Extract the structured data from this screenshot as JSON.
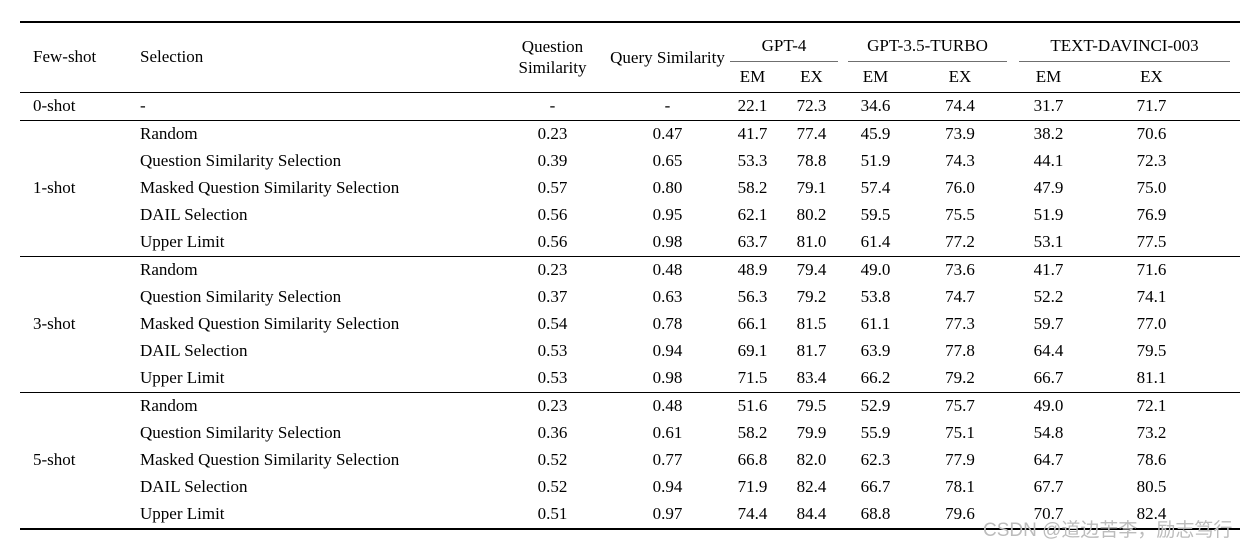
{
  "page": {
    "watermark": "CSDN @道边苦李，励志笃行"
  },
  "table": {
    "column_headers": {
      "few_shot": "Few-shot",
      "selection": "Selection",
      "question_similarity": "Question Similarity",
      "query_similarity": "Query Similarity"
    },
    "model_groups": [
      "GPT-4",
      "GPT-3.5-TURBO",
      "TEXT-DAVINCI-003"
    ],
    "metric_columns": [
      "EM",
      "EX",
      "EM",
      "EX",
      "EM",
      "EX"
    ],
    "sections": [
      {
        "few_shot": "0-shot",
        "rows": [
          {
            "selection": "-",
            "question_similarity": "-",
            "query_similarity": "-",
            "gpt4": {
              "em": "22.1",
              "ex": "72.3"
            },
            "gpt35_turbo": {
              "em": "34.6",
              "ex": "74.4"
            },
            "text_davinci_003": {
              "em": "31.7",
              "ex": "71.7"
            }
          }
        ]
      },
      {
        "few_shot": "1-shot",
        "rows": [
          {
            "selection": "Random",
            "question_similarity": "0.23",
            "query_similarity": "0.47",
            "gpt4": {
              "em": "41.7",
              "ex": "77.4"
            },
            "gpt35_turbo": {
              "em": "45.9",
              "ex": "73.9"
            },
            "text_davinci_003": {
              "em": "38.2",
              "ex": "70.6"
            }
          },
          {
            "selection": "Question Similarity Selection",
            "question_similarity": "0.39",
            "query_similarity": "0.65",
            "gpt4": {
              "em": "53.3",
              "ex": "78.8"
            },
            "gpt35_turbo": {
              "em": "51.9",
              "ex": "74.3"
            },
            "text_davinci_003": {
              "em": "44.1",
              "ex": "72.3"
            }
          },
          {
            "selection": "Masked Question Similarity Selection",
            "question_similarity": "0.57",
            "query_similarity": "0.80",
            "gpt4": {
              "em": "58.2",
              "ex": "79.1"
            },
            "gpt35_turbo": {
              "em": "57.4",
              "ex": "76.0"
            },
            "text_davinci_003": {
              "em": "47.9",
              "ex": "75.0"
            }
          },
          {
            "selection": "DAIL Selection",
            "question_similarity": "0.56",
            "query_similarity": "0.95",
            "gpt4": {
              "em": "62.1",
              "ex": "80.2"
            },
            "gpt35_turbo": {
              "em": "59.5",
              "ex": "75.5"
            },
            "text_davinci_003": {
              "em": "51.9",
              "ex": "76.9"
            }
          },
          {
            "selection": "Upper Limit",
            "question_similarity": "0.56",
            "query_similarity": "0.98",
            "gpt4": {
              "em": "63.7",
              "ex": "81.0"
            },
            "gpt35_turbo": {
              "em": "61.4",
              "ex": "77.2"
            },
            "text_davinci_003": {
              "em": "53.1",
              "ex": "77.5"
            }
          }
        ]
      },
      {
        "few_shot": "3-shot",
        "rows": [
          {
            "selection": "Random",
            "question_similarity": "0.23",
            "query_similarity": "0.48",
            "gpt4": {
              "em": "48.9",
              "ex": "79.4"
            },
            "gpt35_turbo": {
              "em": "49.0",
              "ex": "73.6"
            },
            "text_davinci_003": {
              "em": "41.7",
              "ex": "71.6"
            }
          },
          {
            "selection": "Question Similarity Selection",
            "question_similarity": "0.37",
            "query_similarity": "0.63",
            "gpt4": {
              "em": "56.3",
              "ex": "79.2"
            },
            "gpt35_turbo": {
              "em": "53.8",
              "ex": "74.7"
            },
            "text_davinci_003": {
              "em": "52.2",
              "ex": "74.1"
            }
          },
          {
            "selection": "Masked Question Similarity Selection",
            "question_similarity": "0.54",
            "query_similarity": "0.78",
            "gpt4": {
              "em": "66.1",
              "ex": "81.5"
            },
            "gpt35_turbo": {
              "em": "61.1",
              "ex": "77.3"
            },
            "text_davinci_003": {
              "em": "59.7",
              "ex": "77.0"
            }
          },
          {
            "selection": "DAIL Selection",
            "question_similarity": "0.53",
            "query_similarity": "0.94",
            "gpt4": {
              "em": "69.1",
              "ex": "81.7"
            },
            "gpt35_turbo": {
              "em": "63.9",
              "ex": "77.8"
            },
            "text_davinci_003": {
              "em": "64.4",
              "ex": "79.5"
            }
          },
          {
            "selection": "Upper Limit",
            "question_similarity": "0.53",
            "query_similarity": "0.98",
            "gpt4": {
              "em": "71.5",
              "ex": "83.4"
            },
            "gpt35_turbo": {
              "em": "66.2",
              "ex": "79.2"
            },
            "text_davinci_003": {
              "em": "66.7",
              "ex": "81.1"
            }
          }
        ]
      },
      {
        "few_shot": "5-shot",
        "rows": [
          {
            "selection": "Random",
            "question_similarity": "0.23",
            "query_similarity": "0.48",
            "gpt4": {
              "em": "51.6",
              "ex": "79.5"
            },
            "gpt35_turbo": {
              "em": "52.9",
              "ex": "75.7"
            },
            "text_davinci_003": {
              "em": "49.0",
              "ex": "72.1"
            }
          },
          {
            "selection": "Question Similarity Selection",
            "question_similarity": "0.36",
            "query_similarity": "0.61",
            "gpt4": {
              "em": "58.2",
              "ex": "79.9"
            },
            "gpt35_turbo": {
              "em": "55.9",
              "ex": "75.1"
            },
            "text_davinci_003": {
              "em": "54.8",
              "ex": "73.2"
            }
          },
          {
            "selection": "Masked Question Similarity Selection",
            "question_similarity": "0.52",
            "query_similarity": "0.77",
            "gpt4": {
              "em": "66.8",
              "ex": "82.0"
            },
            "gpt35_turbo": {
              "em": "62.3",
              "ex": "77.9"
            },
            "text_davinci_003": {
              "em": "64.7",
              "ex": "78.6"
            }
          },
          {
            "selection": "DAIL Selection",
            "question_similarity": "0.52",
            "query_similarity": "0.94",
            "gpt4": {
              "em": "71.9",
              "ex": "82.4"
            },
            "gpt35_turbo": {
              "em": "66.7",
              "ex": "78.1"
            },
            "text_davinci_003": {
              "em": "67.7",
              "ex": "80.5"
            }
          },
          {
            "selection": "Upper Limit",
            "question_similarity": "0.51",
            "query_similarity": "0.97",
            "gpt4": {
              "em": "74.4",
              "ex": "84.4"
            },
            "gpt35_turbo": {
              "em": "68.8",
              "ex": "79.6"
            },
            "text_davinci_003": {
              "em": "70.7",
              "ex": "82.4"
            }
          }
        ]
      }
    ]
  }
}
